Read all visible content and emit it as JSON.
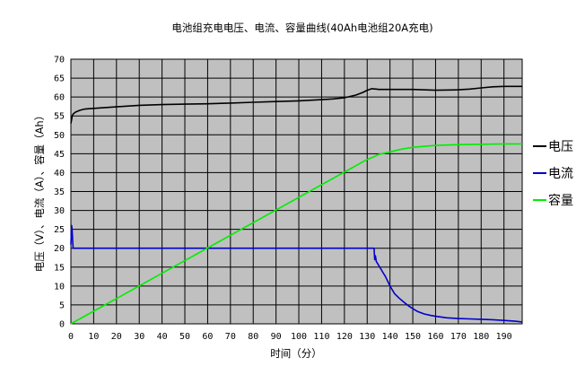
{
  "chart_data": {
    "type": "line",
    "title": "电池组充电电压、电流、容量曲线(40Ah电池组20A充电)",
    "xlabel": "时间（分）",
    "ylabel": "电压（V）、电流（A）、容量（Ah）",
    "xlim": [
      0,
      198
    ],
    "ylim": [
      0,
      70
    ],
    "xticks": [
      0,
      10,
      20,
      30,
      40,
      50,
      60,
      70,
      80,
      90,
      100,
      110,
      120,
      130,
      140,
      150,
      160,
      170,
      180,
      190
    ],
    "yticks": [
      0,
      5,
      10,
      15,
      20,
      25,
      30,
      35,
      40,
      45,
      50,
      55,
      60,
      65,
      70
    ],
    "grid": true,
    "plot_background": "#c0c0c0",
    "legend_position": "right",
    "series": [
      {
        "name": "电压",
        "color": "#000000",
        "x": [
          0,
          0.3,
          0.6,
          1,
          2,
          4,
          6,
          10,
          20,
          30,
          40,
          50,
          60,
          70,
          80,
          90,
          100,
          110,
          115,
          120,
          125,
          128,
          130,
          132,
          134,
          135,
          140,
          150,
          160,
          170,
          175,
          180,
          185,
          190,
          198
        ],
        "y": [
          53,
          54,
          55,
          55.5,
          56,
          56.5,
          56.8,
          57,
          57.4,
          57.8,
          58,
          58.1,
          58.2,
          58.4,
          58.6,
          58.8,
          59,
          59.3,
          59.5,
          59.8,
          60.5,
          61.2,
          61.8,
          62.2,
          62.1,
          62,
          62,
          62,
          61.8,
          61.9,
          62.1,
          62.4,
          62.7,
          62.8,
          62.8
        ]
      },
      {
        "name": "电流",
        "color": "#0000cc",
        "x": [
          0,
          0.3,
          0.5,
          0.8,
          1,
          1.5,
          2,
          10,
          50,
          100,
          130,
          132,
          133,
          133.3,
          133.6,
          134,
          135,
          136,
          137,
          138,
          140,
          142,
          144,
          146,
          148,
          150,
          152,
          155,
          158,
          160,
          165,
          170,
          175,
          180,
          185,
          190,
          195,
          198
        ],
        "y": [
          21,
          26,
          25,
          22,
          20,
          20,
          20,
          20,
          20,
          20,
          20,
          20,
          20,
          17,
          18,
          16.5,
          15.5,
          14.5,
          13.5,
          12.5,
          10,
          8,
          6.8,
          5.8,
          4.8,
          4,
          3.3,
          2.6,
          2.2,
          2,
          1.6,
          1.4,
          1.3,
          1.2,
          1.1,
          0.9,
          0.7,
          0.5
        ]
      },
      {
        "name": "容量",
        "color": "#00ee00",
        "x": [
          0,
          130,
          133,
          135,
          140,
          145,
          150,
          160,
          170,
          180,
          190,
          198
        ],
        "y": [
          0,
          43.5,
          44.2,
          44.8,
          45.5,
          46.2,
          46.7,
          47.2,
          47.4,
          47.5,
          47.6,
          47.6
        ]
      }
    ]
  }
}
